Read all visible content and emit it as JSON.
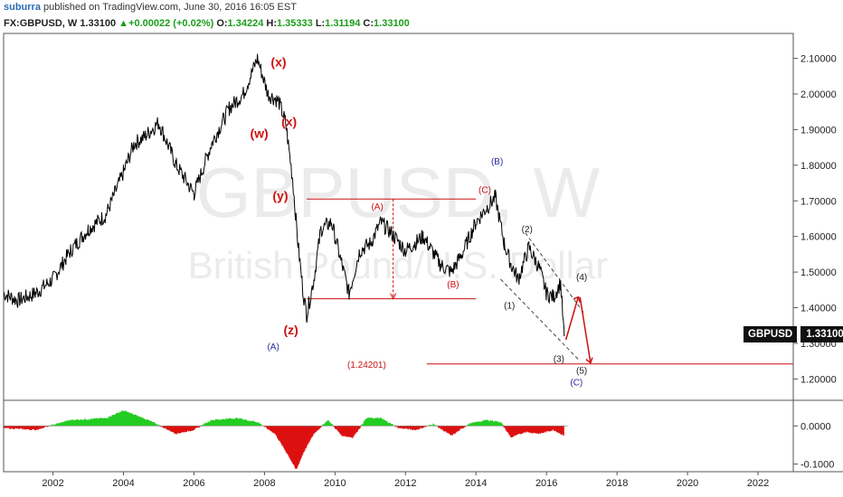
{
  "header": {
    "author": "suburra",
    "published": "published on TradingView.com, June 30, 2016 16:05 EST",
    "symbol": "FX:GBPUSD, W",
    "last": "1.33100",
    "arrow": "▲",
    "change": "+0.00022 (+0.02%)",
    "o_label": "O:",
    "o": "1.34224",
    "h_label": "H:",
    "h": "1.35333",
    "l_label": "L:",
    "l": "1.31194",
    "c_label": "C:",
    "c": "1.33100"
  },
  "watermark": {
    "symbol": "GBPUSD, W",
    "description": "British Pound/U.S. Dollar"
  },
  "price_tag": {
    "name": "GBPUSD",
    "value": "1.33100"
  },
  "colors": {
    "price_line": "#000000",
    "annotation_red": "#cc1010",
    "wave_blue": "#2a2aa0",
    "osc_up": "#22cc22",
    "osc_down": "#dd1111",
    "grid": "#d8d8d8"
  },
  "chart_data": {
    "type": "line",
    "x_ticks": [
      "2002",
      "2004",
      "2006",
      "2008",
      "2010",
      "2012",
      "2014",
      "2016",
      "2018",
      "2020",
      "2022"
    ],
    "y_ticks": [
      "2.10000",
      "2.00000",
      "1.90000",
      "1.80000",
      "1.70000",
      "1.60000",
      "1.50000",
      "1.40000",
      "1.30000",
      "1.20000"
    ],
    "ylim": [
      1.14,
      2.17
    ],
    "xlim": [
      2000.6,
      2023.0
    ],
    "series": [
      {
        "values_x": [
          2000.6,
          2001.0,
          2001.5,
          2002.0,
          2002.5,
          2003.0,
          2003.5,
          2004.0,
          2004.3,
          2004.6,
          2005.0,
          2005.5,
          2006.0,
          2006.5,
          2007.0,
          2007.4,
          2007.8,
          2008.1,
          2008.4,
          2008.6,
          2008.8,
          2008.95,
          2009.1,
          2009.2,
          2009.4,
          2009.6,
          2009.9,
          2010.2,
          2010.4,
          2010.7,
          2011.0,
          2011.3,
          2011.6,
          2012.0,
          2012.5,
          2013.0,
          2013.3,
          2013.6,
          2014.0,
          2014.3,
          2014.55,
          2014.8,
          2015.0,
          2015.2,
          2015.5,
          2015.8,
          2016.0,
          2016.2,
          2016.4,
          2016.5
        ],
        "values_y": [
          1.44,
          1.42,
          1.44,
          1.48,
          1.56,
          1.62,
          1.66,
          1.78,
          1.86,
          1.88,
          1.92,
          1.8,
          1.72,
          1.86,
          1.96,
          2.0,
          2.1,
          2.0,
          1.98,
          1.92,
          1.76,
          1.58,
          1.44,
          1.38,
          1.48,
          1.62,
          1.64,
          1.52,
          1.44,
          1.56,
          1.58,
          1.64,
          1.61,
          1.56,
          1.6,
          1.52,
          1.5,
          1.55,
          1.64,
          1.68,
          1.71,
          1.58,
          1.52,
          1.48,
          1.57,
          1.51,
          1.44,
          1.43,
          1.47,
          1.32
        ]
      }
    ],
    "annotations": [
      {
        "text": "(x)",
        "x": 2008.4,
        "y": 2.0875,
        "color": "red",
        "weight": "bold"
      },
      {
        "text": "(w)",
        "x": 2007.85,
        "y": 1.8875,
        "color": "red",
        "weight": "bold"
      },
      {
        "text": "(x)",
        "x": 2008.7,
        "y": 1.92,
        "color": "red",
        "weight": "bold"
      },
      {
        "text": "(y)",
        "x": 2008.45,
        "y": 1.7125,
        "color": "red",
        "weight": "bold"
      },
      {
        "text": "(z)",
        "x": 2008.75,
        "y": 1.335,
        "color": "red",
        "weight": "bold"
      },
      {
        "text": "(A)",
        "x": 2008.25,
        "y": 1.2925,
        "color": "blue",
        "weight": "normal"
      },
      {
        "text": "(A)",
        "x": 2011.2,
        "y": 1.685,
        "color": "red",
        "weight": "normal"
      },
      {
        "text": "(B)",
        "x": 2013.35,
        "y": 1.4675,
        "color": "red",
        "weight": "normal"
      },
      {
        "text": "(C)",
        "x": 2014.25,
        "y": 1.7325,
        "color": "red",
        "weight": "normal"
      },
      {
        "text": "(B)",
        "x": 2014.6,
        "y": 1.8125,
        "color": "blue",
        "weight": "normal"
      },
      {
        "text": "(1)",
        "x": 2014.95,
        "y": 1.4075,
        "color": "dark",
        "weight": "normal"
      },
      {
        "text": "(2)",
        "x": 2015.45,
        "y": 1.6225,
        "color": "dark",
        "weight": "normal"
      },
      {
        "text": "(3)",
        "x": 2016.35,
        "y": 1.2575,
        "color": "dark",
        "weight": "normal"
      },
      {
        "text": "(4)",
        "x": 2017.0,
        "y": 1.4875,
        "color": "dark",
        "weight": "normal"
      },
      {
        "text": "(5)",
        "x": 2017.0,
        "y": 1.225,
        "color": "dark",
        "weight": "normal"
      },
      {
        "text": "(C)",
        "x": 2016.85,
        "y": 1.1925,
        "color": "blue",
        "weight": "normal"
      },
      {
        "text": "(1.24201)",
        "x": 2010.9,
        "y": 1.24201,
        "color": "red",
        "weight": "normal"
      }
    ],
    "levels": {
      "range_top": 1.705,
      "range_bottom": 1.425,
      "target": 1.24201
    },
    "oscillator": {
      "y_ticks": [
        "0.0000",
        "-0.1000"
      ],
      "ylim": [
        -0.12,
        0.06
      ],
      "x": [
        2000.6,
        2001.5,
        2002.5,
        2003.5,
        2004.0,
        2004.7,
        2005.5,
        2006.0,
        2006.5,
        2007.2,
        2007.8,
        2008.3,
        2008.7,
        2008.9,
        2009.1,
        2009.4,
        2009.8,
        2010.2,
        2010.5,
        2010.9,
        2011.3,
        2011.8,
        2012.3,
        2012.8,
        2013.3,
        2013.8,
        2014.3,
        2014.7,
        2015.0,
        2015.4,
        2015.8,
        2016.2,
        2016.5
      ],
      "values": [
        -0.005,
        -0.01,
        0.015,
        0.02,
        0.04,
        0.015,
        -0.02,
        -0.01,
        0.015,
        0.02,
        0.01,
        -0.02,
        -0.08,
        -0.115,
        -0.07,
        -0.02,
        0.015,
        -0.025,
        -0.03,
        0.02,
        0.02,
        -0.005,
        -0.01,
        0.005,
        -0.025,
        0.005,
        0.015,
        0.01,
        -0.03,
        -0.015,
        -0.02,
        -0.01,
        -0.025
      ]
    }
  }
}
